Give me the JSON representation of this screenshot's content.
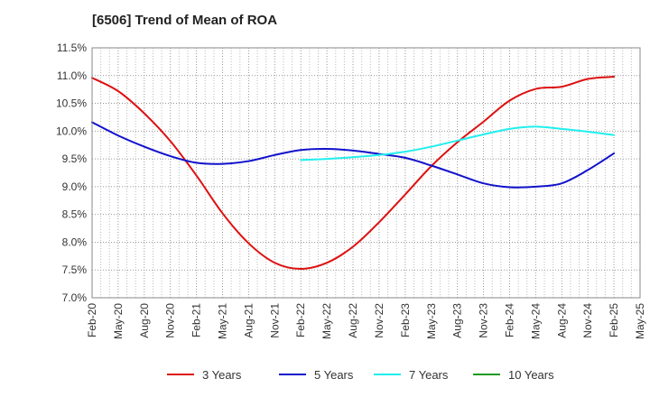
{
  "chart_data": {
    "type": "line",
    "title": "[6506]  Trend of Mean of ROA",
    "xlabel": "",
    "ylabel": "",
    "ylim": [
      7.0,
      11.5
    ],
    "y_ticks": [
      7.0,
      7.5,
      8.0,
      8.5,
      9.0,
      9.5,
      10.0,
      10.5,
      11.0,
      11.5
    ],
    "y_tick_labels": [
      "7.0%",
      "7.5%",
      "8.0%",
      "8.5%",
      "9.0%",
      "9.5%",
      "10.0%",
      "10.5%",
      "11.0%",
      "11.5%"
    ],
    "x_tick_labels": [
      "Feb-20",
      "May-20",
      "Aug-20",
      "Nov-20",
      "Feb-21",
      "May-21",
      "Aug-21",
      "Nov-21",
      "Feb-22",
      "May-22",
      "Aug-22",
      "Nov-22",
      "Feb-23",
      "May-23",
      "Aug-23",
      "Nov-23",
      "Feb-24",
      "May-24",
      "Aug-24",
      "Nov-24",
      "Feb-25",
      "May-25"
    ],
    "grid": true,
    "legend_position": "bottom",
    "series": [
      {
        "name": "3 Years",
        "color": "#dd1111",
        "values": [
          10.96,
          10.72,
          10.32,
          9.82,
          9.2,
          8.52,
          7.98,
          7.63,
          7.52,
          7.63,
          7.92,
          8.36,
          8.86,
          9.37,
          9.8,
          10.17,
          10.55,
          10.76,
          10.8,
          10.94,
          10.98,
          null
        ]
      },
      {
        "name": "5 Years",
        "color": "#1111cc",
        "values": [
          10.16,
          9.92,
          9.72,
          9.55,
          9.43,
          9.41,
          9.46,
          9.57,
          9.66,
          9.68,
          9.65,
          9.59,
          9.52,
          9.38,
          9.22,
          9.06,
          8.99,
          9.0,
          9.06,
          9.3,
          9.6,
          null
        ]
      },
      {
        "name": "7 Years",
        "color": "#22eeee",
        "values": [
          null,
          null,
          null,
          null,
          null,
          null,
          null,
          null,
          9.48,
          9.5,
          9.53,
          9.57,
          9.63,
          9.72,
          9.83,
          9.94,
          10.04,
          10.08,
          10.04,
          9.99,
          9.93,
          null
        ]
      },
      {
        "name": "10 Years",
        "color": "#229922",
        "values": [
          null,
          null,
          null,
          null,
          null,
          null,
          null,
          null,
          null,
          null,
          null,
          null,
          null,
          null,
          null,
          null,
          null,
          null,
          null,
          null,
          null,
          null
        ]
      }
    ]
  }
}
